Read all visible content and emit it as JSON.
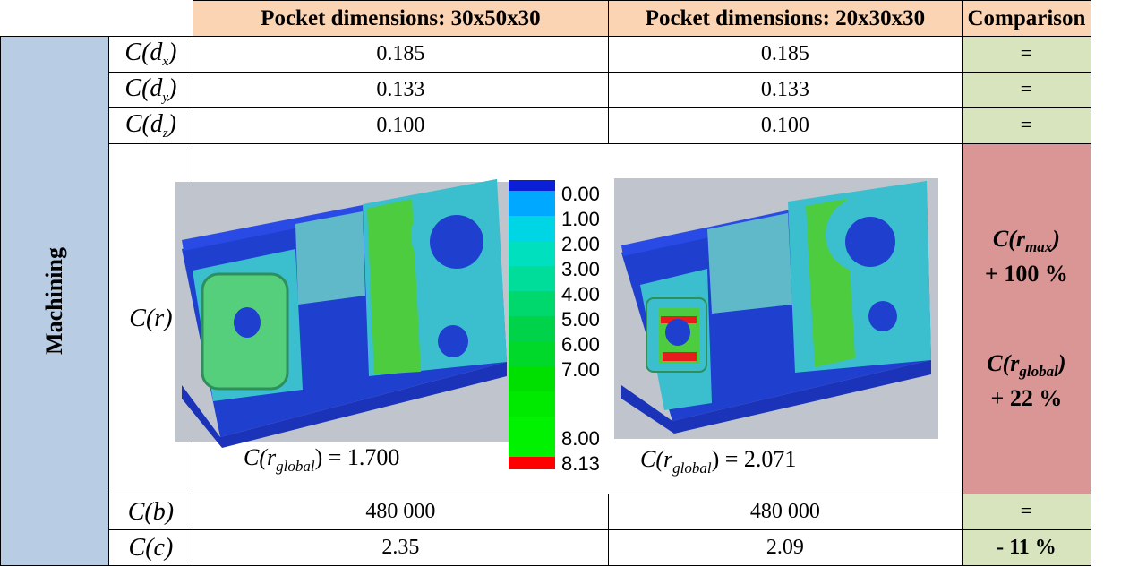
{
  "header": {
    "col1": "Pocket dimensions: 30x50x30",
    "col2": "Pocket dimensions: 20x30x30",
    "col3": "Comparison"
  },
  "side_label": "Machining",
  "rows": [
    {
      "var_base": "C(d",
      "var_sub": "x",
      "var_end": ")",
      "v1": "0.185",
      "v2": "0.185",
      "cmp": "="
    },
    {
      "var_base": "C(d",
      "var_sub": "y",
      "var_end": ")",
      "v1": "0.133",
      "v2": "0.133",
      "cmp": "="
    },
    {
      "var_base": "C(d",
      "var_sub": "z",
      "var_end": ")",
      "v1": "0.100",
      "v2": "0.100",
      "cmp": "="
    }
  ],
  "r_row": {
    "var": "C(r)",
    "left_global": "C(r",
    "left_global_sub": "global",
    "left_global_val": ") = 1.700",
    "right_global": "C(r",
    "right_global_sub": "global",
    "right_global_val": ") = 2.071",
    "cmp_rmax_base": "C(r",
    "cmp_rmax_sub": "max",
    "cmp_rmax_end": ")",
    "cmp_rmax_val": "+ 100 %",
    "cmp_rglobal_base": "C(r",
    "cmp_rglobal_sub": "global",
    "cmp_rglobal_end": ")",
    "cmp_rglobal_val": "+ 22 %"
  },
  "legend": [
    "0.00",
    "1.00",
    "2.00",
    "3.00",
    "4.00",
    "5.00",
    "6.00",
    "7.00",
    "8.00",
    "8.13"
  ],
  "b_row": {
    "var": "C(b)",
    "v1": "480 000",
    "v2": "480 000",
    "cmp": "="
  },
  "c_row": {
    "var": "C(c)",
    "v1": "2.35",
    "v2": "2.09",
    "cmp": "- 11 %"
  },
  "colors": {
    "header_bg": "#fbd4b4",
    "equal_bg": "#d7e4bd",
    "worse_bg": "#d99694",
    "side_bg": "#b8cce4"
  }
}
